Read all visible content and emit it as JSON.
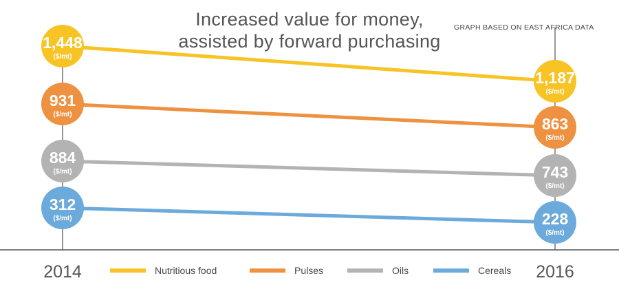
{
  "header": {
    "title_line1": "Increased value for money,",
    "title_line2": "assisted by forward purchasing",
    "source_note": "GRAPH BASED ON EAST AFRICA DATA"
  },
  "chart_data": {
    "type": "line",
    "x": [
      "2014",
      "2016"
    ],
    "unit_label": "($/mt)",
    "series": [
      {
        "name": "Nutritious food",
        "values": [
          1448,
          1187
        ],
        "labels": [
          "1,448",
          "1,187"
        ],
        "color": "#F7C325"
      },
      {
        "name": "Pulses",
        "values": [
          931,
          863
        ],
        "labels": [
          "931",
          "863"
        ],
        "color": "#EE9140"
      },
      {
        "name": "Oils",
        "values": [
          884,
          743
        ],
        "labels": [
          "884",
          "743"
        ],
        "color": "#B3B3B3"
      },
      {
        "name": "Cereals",
        "values": [
          312,
          228
        ],
        "labels": [
          "312",
          "228"
        ],
        "color": "#6BAADB"
      }
    ],
    "legend": "bottom",
    "grid": false
  }
}
